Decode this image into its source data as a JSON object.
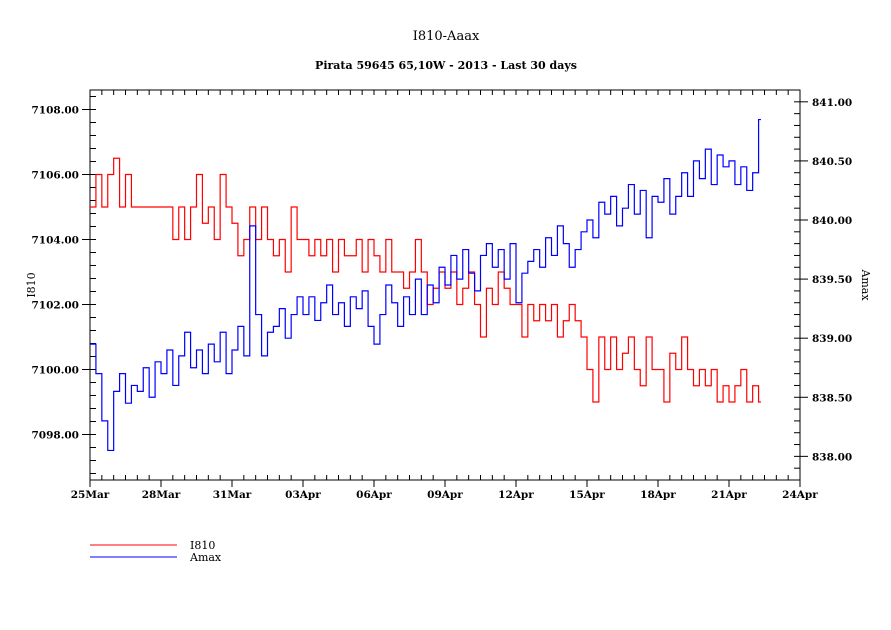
{
  "chart_data": {
    "type": "line",
    "title": "I810-Aaax",
    "subtitle": "Pirata 59645 65,10W - 2013 - Last 30 days",
    "xlabel": "",
    "ylabel_left": "I810",
    "ylabel_right": "Amax",
    "x_start": "25Mar",
    "x_step_days": 0.25,
    "x_range_days": [
      0,
      30
    ],
    "x_ticks": [
      {
        "day": 0,
        "label": "25Mar"
      },
      {
        "day": 3,
        "label": "28Mar"
      },
      {
        "day": 6,
        "label": "31Mar"
      },
      {
        "day": 9,
        "label": "03Apr"
      },
      {
        "day": 12,
        "label": "06Apr"
      },
      {
        "day": 15,
        "label": "09Apr"
      },
      {
        "day": 18,
        "label": "12Apr"
      },
      {
        "day": 21,
        "label": "15Apr"
      },
      {
        "day": 24,
        "label": "18Apr"
      },
      {
        "day": 27,
        "label": "21Apr"
      },
      {
        "day": 30,
        "label": "24Apr"
      }
    ],
    "y_left_range": [
      7096.6,
      7108.6
    ],
    "y_left_ticks": [
      "7098.00",
      "7100.00",
      "7102.00",
      "7104.00",
      "7106.00",
      "7108.00"
    ],
    "y_right_range": [
      837.8,
      841.1
    ],
    "y_right_ticks": [
      "838.00",
      "838.50",
      "839.00",
      "839.50",
      "840.00",
      "840.50",
      "841.00"
    ],
    "grid": false,
    "legend_position": "bottom-left",
    "series": [
      {
        "name": "I810",
        "axis": "left",
        "color": "#ff0000",
        "values": [
          7105,
          7106,
          7105,
          7106,
          7106.5,
          7105,
          7106,
          7105,
          7105,
          7105,
          7105,
          7105,
          7105,
          7105,
          7104,
          7105,
          7104,
          7105,
          7106,
          7104.5,
          7105,
          7104,
          7106,
          7105,
          7104.5,
          7103.5,
          7104,
          7105,
          7104,
          7105,
          7104,
          7103.5,
          7104,
          7103,
          7105,
          7104,
          7104,
          7103.5,
          7104,
          7103.5,
          7104,
          7103,
          7104,
          7103.5,
          7103.5,
          7104,
          7103,
          7104,
          7103.5,
          7103,
          7104,
          7103,
          7103,
          7102.5,
          7103,
          7104,
          7103,
          7102,
          7102.5,
          7103,
          7102.5,
          7103,
          7102,
          7102.5,
          7103,
          7102,
          7101,
          7102.5,
          7102,
          7103,
          7102.5,
          7102,
          7102,
          7101,
          7102,
          7101.5,
          7102,
          7101.5,
          7102,
          7101,
          7101.5,
          7102,
          7101.5,
          7101,
          7100,
          7099,
          7101,
          7100,
          7101,
          7100,
          7100.5,
          7101,
          7100,
          7099.5,
          7101,
          7100,
          7100,
          7099,
          7100.5,
          7100,
          7101,
          7100,
          7099.5,
          7100,
          7099.5,
          7100,
          7099,
          7099.5,
          7099,
          7099.5,
          7100,
          7099,
          7099.5,
          7099
        ]
      },
      {
        "name": "Amax",
        "axis": "right",
        "color": "#0000ff",
        "values": [
          838.95,
          838.7,
          838.3,
          838.05,
          838.55,
          838.7,
          838.45,
          838.6,
          838.55,
          838.75,
          838.5,
          838.8,
          838.7,
          838.9,
          838.6,
          838.85,
          839.05,
          838.75,
          838.9,
          838.7,
          838.95,
          838.8,
          839.05,
          838.7,
          838.9,
          839.1,
          838.85,
          839.95,
          839.2,
          838.85,
          839.05,
          839.1,
          839.25,
          839.0,
          839.2,
          839.35,
          839.2,
          839.35,
          839.15,
          839.3,
          839.45,
          839.2,
          839.3,
          839.1,
          839.35,
          839.25,
          839.4,
          839.1,
          838.95,
          839.2,
          839.45,
          839.3,
          839.1,
          839.35,
          839.2,
          839.5,
          839.2,
          839.45,
          839.3,
          839.6,
          839.45,
          839.7,
          839.5,
          839.75,
          839.55,
          839.4,
          839.7,
          839.8,
          839.6,
          839.75,
          839.5,
          839.8,
          839.3,
          839.55,
          839.65,
          839.75,
          839.6,
          839.85,
          839.7,
          839.95,
          839.8,
          839.6,
          839.75,
          839.9,
          840.0,
          839.85,
          840.15,
          840.05,
          840.2,
          839.95,
          840.1,
          840.3,
          840.05,
          840.25,
          839.85,
          840.2,
          840.15,
          840.35,
          840.05,
          840.2,
          840.4,
          840.2,
          840.5,
          840.35,
          840.6,
          840.3,
          840.55,
          840.45,
          840.5,
          840.3,
          840.45,
          840.25,
          840.4,
          840.85
        ]
      }
    ]
  }
}
